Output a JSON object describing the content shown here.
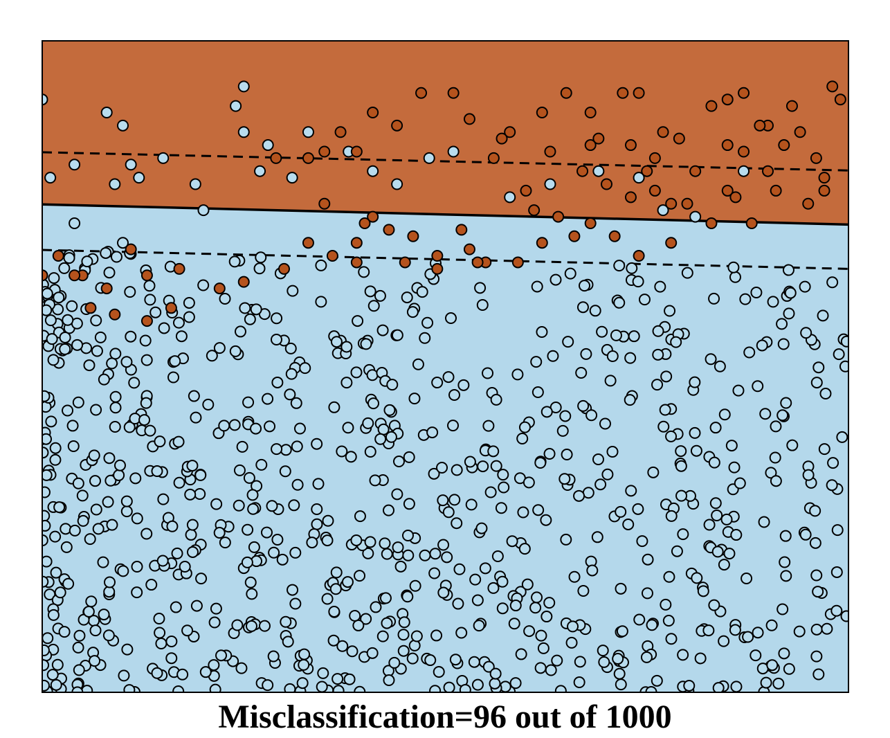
{
  "colors": {
    "class_a_region": "#c46b3c",
    "class_b_region": "#b4d8eb",
    "class_a_point": "#b5531d",
    "class_b_point": "#b8dcee",
    "point_stroke": "#000000",
    "boundary": "#000000"
  },
  "caption": "Misclassification=96 out of 1000",
  "chart_data": {
    "type": "scatter",
    "title": "Misclassification=96 out of 1000",
    "xlabel": "",
    "ylabel": "",
    "xlim": [
      0,
      1
    ],
    "ylim": [
      0,
      1
    ],
    "axes_ticks": "none",
    "grid": false,
    "legend": "none",
    "decision_boundary": {
      "x": [
        0,
        1
      ],
      "y": [
        0.749,
        0.718
      ]
    },
    "margin_upper": {
      "x": [
        0,
        1
      ],
      "y": [
        0.829,
        0.801
      ]
    },
    "margin_lower": {
      "x": [
        0,
        1
      ],
      "y": [
        0.679,
        0.65
      ]
    },
    "series": [
      {
        "class": "orange",
        "points": [
          [
            0.58,
            0.86
          ],
          [
            0.62,
            0.89
          ],
          [
            0.68,
            0.89
          ],
          [
            0.74,
            0.92
          ],
          [
            0.85,
            0.91
          ],
          [
            0.9,
            0.87
          ],
          [
            0.93,
            0.9
          ],
          [
            0.98,
            0.93
          ],
          [
            0.53,
            0.88
          ],
          [
            0.56,
            0.82
          ],
          [
            0.63,
            0.83
          ],
          [
            0.67,
            0.8
          ],
          [
            0.7,
            0.78
          ],
          [
            0.76,
            0.77
          ],
          [
            0.81,
            0.8
          ],
          [
            0.85,
            0.77
          ],
          [
            0.87,
            0.83
          ],
          [
            0.9,
            0.8
          ],
          [
            0.92,
            0.84
          ],
          [
            0.96,
            0.82
          ],
          [
            0.83,
            0.72
          ],
          [
            0.78,
            0.75
          ],
          [
            0.73,
            0.76
          ],
          [
            0.68,
            0.72
          ],
          [
            0.61,
            0.74
          ],
          [
            0.88,
            0.72
          ],
          [
            0.95,
            0.75
          ],
          [
            0.77,
            0.86
          ],
          [
            0.79,
            0.85
          ],
          [
            0.85,
            0.84
          ],
          [
            0.91,
            0.77
          ],
          [
            0.97,
            0.79
          ],
          [
            0.47,
            0.92
          ],
          [
            0.44,
            0.87
          ],
          [
            0.41,
            0.89
          ],
          [
            0.37,
            0.86
          ],
          [
            0.35,
            0.83
          ],
          [
            0.39,
            0.83
          ],
          [
            0.33,
            0.82
          ],
          [
            0.29,
            0.82
          ],
          [
            0.43,
            0.71
          ],
          [
            0.46,
            0.7
          ],
          [
            0.49,
            0.67
          ],
          [
            0.52,
            0.71
          ],
          [
            0.55,
            0.66
          ],
          [
            0.59,
            0.66
          ],
          [
            0.62,
            0.69
          ],
          [
            0.66,
            0.7
          ],
          [
            0.71,
            0.7
          ],
          [
            0.74,
            0.67
          ],
          [
            0.78,
            0.69
          ],
          [
            0.39,
            0.69
          ],
          [
            0.36,
            0.67
          ],
          [
            0.35,
            0.75
          ],
          [
            0.33,
            0.69
          ],
          [
            0.3,
            0.65
          ],
          [
            0.25,
            0.63
          ],
          [
            0.22,
            0.62
          ],
          [
            0.17,
            0.65
          ],
          [
            0.13,
            0.64
          ],
          [
            0.11,
            0.68
          ],
          [
            0.08,
            0.62
          ],
          [
            0.05,
            0.64
          ],
          [
            0.02,
            0.67
          ],
          [
            0.0,
            0.64
          ],
          [
            0.04,
            0.64
          ],
          [
            0.06,
            0.59
          ],
          [
            0.09,
            0.58
          ],
          [
            0.13,
            0.57
          ],
          [
            0.16,
            0.59
          ],
          [
            0.4,
            0.72
          ],
          [
            0.41,
            0.73
          ],
          [
            0.39,
            0.66
          ],
          [
            0.45,
            0.66
          ],
          [
            0.57,
            0.85
          ],
          [
            0.6,
            0.77
          ],
          [
            0.64,
            0.73
          ],
          [
            0.68,
            0.84
          ],
          [
            0.75,
            0.8
          ],
          [
            0.8,
            0.75
          ],
          [
            0.86,
            0.76
          ],
          [
            0.89,
            0.87
          ],
          [
            0.94,
            0.86
          ],
          [
            0.97,
            0.77
          ],
          [
            0.99,
            0.91
          ],
          [
            0.72,
            0.92
          ],
          [
            0.54,
            0.66
          ],
          [
            0.49,
            0.65
          ],
          [
            0.51,
            0.92
          ],
          [
            0.65,
            0.92
          ],
          [
            0.69,
            0.85
          ],
          [
            0.73,
            0.84
          ],
          [
            0.76,
            0.82
          ],
          [
            0.83,
            0.9
          ],
          [
            0.87,
            0.92
          ],
          [
            0.53,
            0.68
          ]
        ]
      },
      {
        "class": "blue",
        "points": [
          [
            0.0,
            0.91
          ],
          [
            0.08,
            0.89
          ],
          [
            0.25,
            0.93
          ],
          [
            0.24,
            0.9
          ],
          [
            0.28,
            0.84
          ],
          [
            0.33,
            0.86
          ],
          [
            0.1,
            0.87
          ],
          [
            0.11,
            0.81
          ],
          [
            0.15,
            0.82
          ],
          [
            0.25,
            0.86
          ],
          [
            0.27,
            0.8
          ],
          [
            0.41,
            0.8
          ],
          [
            0.44,
            0.78
          ],
          [
            0.48,
            0.82
          ],
          [
            0.51,
            0.83
          ],
          [
            0.58,
            0.76
          ],
          [
            0.63,
            0.78
          ],
          [
            0.69,
            0.8
          ],
          [
            0.74,
            0.79
          ],
          [
            0.77,
            0.74
          ],
          [
            0.81,
            0.73
          ],
          [
            0.87,
            0.8
          ],
          [
            0.12,
            0.79
          ],
          [
            0.09,
            0.78
          ],
          [
            0.04,
            0.81
          ],
          [
            0.01,
            0.79
          ],
          [
            0.19,
            0.78
          ],
          [
            0.31,
            0.79
          ],
          [
            0.38,
            0.83
          ],
          [
            0.04,
            0.72
          ],
          [
            0.1,
            0.69
          ],
          [
            0.2,
            0.74
          ]
        ],
        "dense_fill": {
          "count": 872,
          "seed": 20240613,
          "y_max_rel_boundary": -0.02
        }
      }
    ]
  }
}
